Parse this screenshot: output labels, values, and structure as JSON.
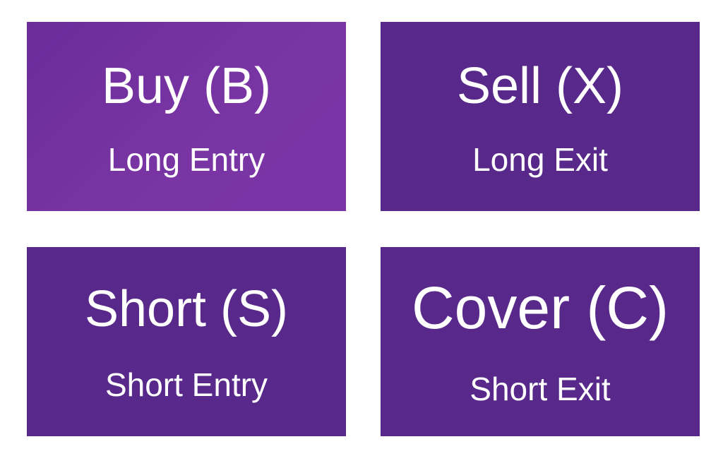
{
  "tiles": [
    {
      "title": "Buy (B)",
      "subtitle": "Long Entry",
      "color": "#7030a0"
    },
    {
      "title": "Sell (X)",
      "subtitle": "Long Exit",
      "color": "#58298a"
    },
    {
      "title": "Short (S)",
      "subtitle": "Short Entry",
      "color": "#58298a"
    },
    {
      "title": "Cover (C)",
      "subtitle": "Short Exit",
      "color": "#58298a"
    }
  ]
}
